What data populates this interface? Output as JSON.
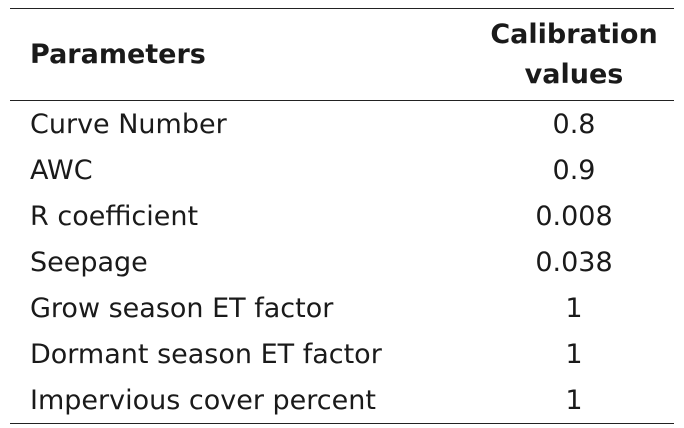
{
  "table": {
    "header": [
      "Parameters",
      "Calibration values"
    ],
    "rows": [
      [
        "Curve Number",
        "0.8"
      ],
      [
        "AWC",
        "0.9"
      ],
      [
        "R coefficient",
        "0.008"
      ],
      [
        "Seepage",
        "0.038"
      ],
      [
        "Grow season ET factor",
        "1"
      ],
      [
        "Dormant season ET factor",
        "1"
      ],
      [
        "Impervious cover percent",
        "1"
      ]
    ]
  }
}
